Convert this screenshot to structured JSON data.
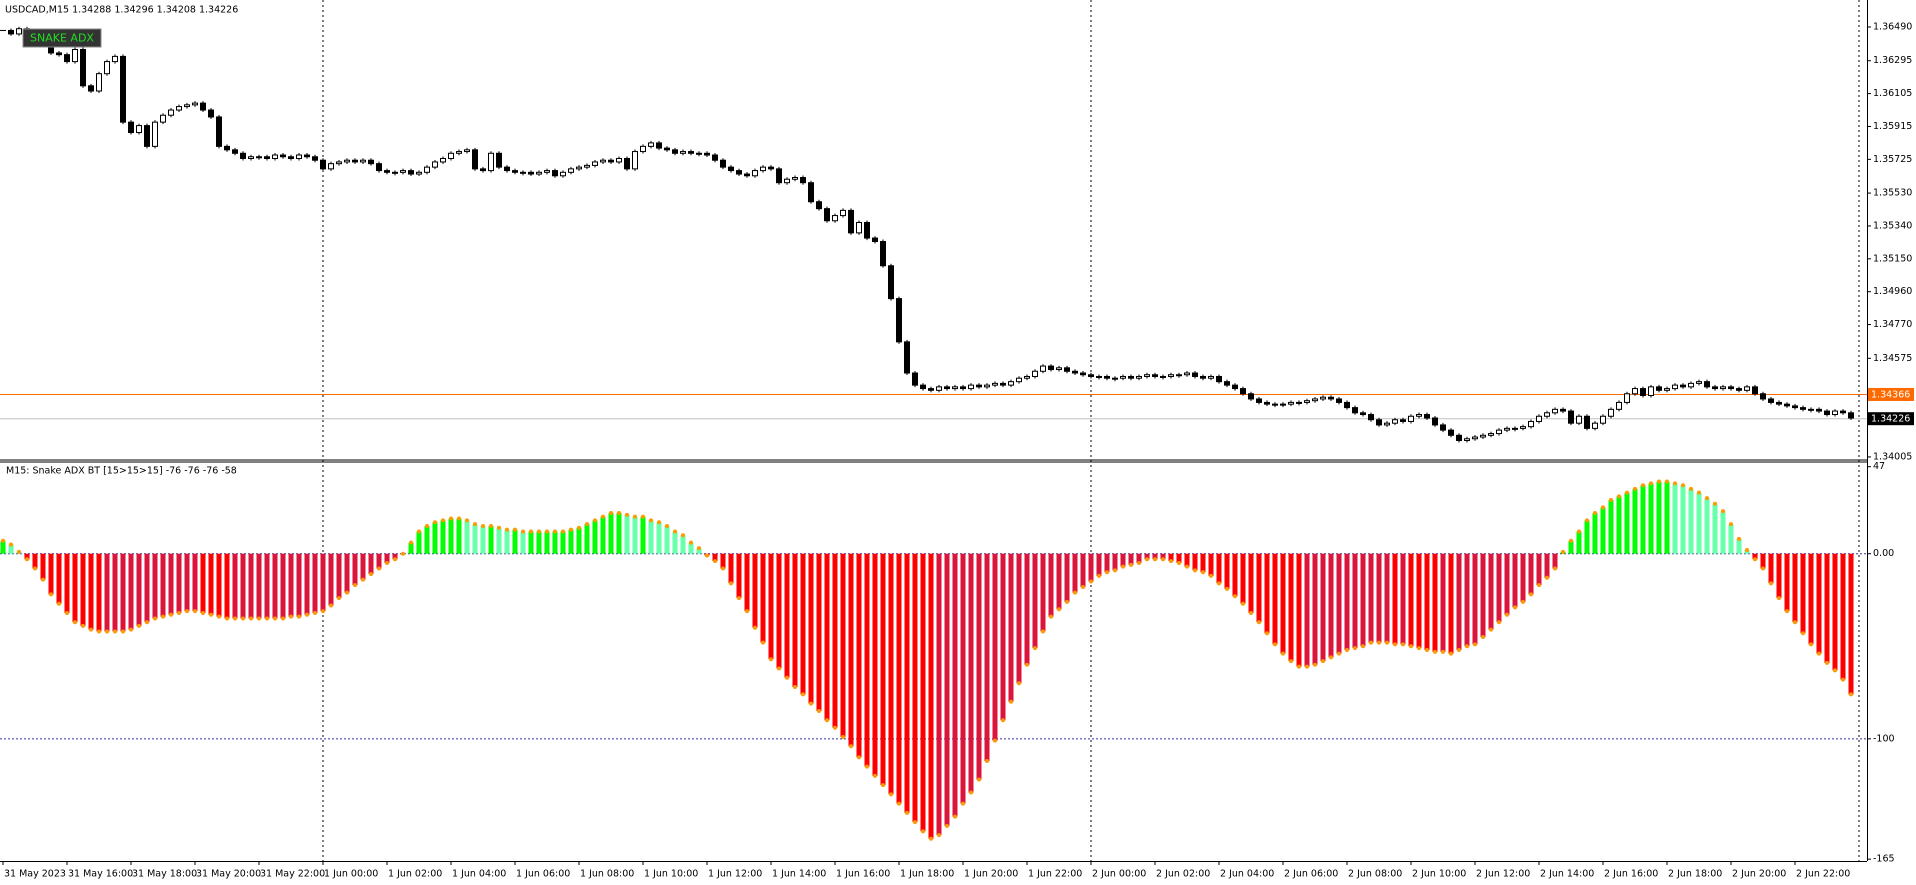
{
  "chart_data": [
    {
      "type": "candlestick",
      "title": "USDCAD,M15 1.34288 1.34296 1.34208 1.34226",
      "button_label": "SNAKE ADX",
      "up_color": "#ffffff",
      "down_color": "#000000",
      "outline_color": "#000000",
      "values": [
        1.3647,
        1.3645,
        1.3648,
        1.3646,
        1.3643,
        1.364,
        1.3634,
        1.3633,
        1.3629,
        1.3636,
        1.3615,
        1.3612,
        1.3622,
        1.3629,
        1.3632,
        1.3594,
        1.3588,
        1.3592,
        1.358,
        1.3594,
        1.3598,
        1.3601,
        1.3603,
        1.3604,
        1.3605,
        1.3601,
        1.3597,
        1.358,
        1.3578,
        1.3576,
        1.3573,
        1.3574,
        1.3574,
        1.3573,
        1.3575,
        1.3574,
        1.3573,
        1.3575,
        1.3574,
        1.3572,
        1.3567,
        1.357,
        1.3571,
        1.3572,
        1.3571,
        1.3572,
        1.357,
        1.3566,
        1.3565,
        1.3565,
        1.3566,
        1.3564,
        1.3565,
        1.3568,
        1.3571,
        1.3573,
        1.3576,
        1.3577,
        1.3578,
        1.3567,
        1.3566,
        1.3576,
        1.3568,
        1.3566,
        1.3565,
        1.3565,
        1.3564,
        1.3565,
        1.3566,
        1.3563,
        1.3565,
        1.3567,
        1.3568,
        1.3569,
        1.3571,
        1.3572,
        1.3571,
        1.3573,
        1.3567,
        1.3577,
        1.358,
        1.3582,
        1.3579,
        1.3578,
        1.3576,
        1.3577,
        1.3576,
        1.3576,
        1.3575,
        1.3572,
        1.3568,
        1.3566,
        1.3564,
        1.3563,
        1.3566,
        1.3568,
        1.3567,
        1.3559,
        1.3561,
        1.3562,
        1.3559,
        1.3548,
        1.3544,
        1.3537,
        1.354,
        1.3543,
        1.353,
        1.3536,
        1.3527,
        1.3525,
        1.3511,
        1.3492,
        1.3467,
        1.3449,
        1.3442,
        1.344,
        1.3439,
        1.3441,
        1.344,
        1.3441,
        1.344,
        1.3442,
        1.3441,
        1.3442,
        1.3443,
        1.3442,
        1.3444,
        1.3446,
        1.3447,
        1.345,
        1.3453,
        1.3451,
        1.3452,
        1.345,
        1.3449,
        1.3448,
        1.3447,
        1.3447,
        1.3446,
        1.3446,
        1.3447,
        1.3446,
        1.3447,
        1.3448,
        1.3447,
        1.3447,
        1.3448,
        1.3448,
        1.3449,
        1.3447,
        1.3446,
        1.3447,
        1.3444,
        1.3442,
        1.344,
        1.3437,
        1.3434,
        1.3432,
        1.3431,
        1.3431,
        1.3431,
        1.3432,
        1.3432,
        1.3433,
        1.3434,
        1.3435,
        1.3434,
        1.3432,
        1.3429,
        1.3426,
        1.3425,
        1.3422,
        1.3419,
        1.342,
        1.3422,
        1.3421,
        1.3424,
        1.3425,
        1.3423,
        1.3419,
        1.3416,
        1.3413,
        1.341,
        1.3411,
        1.3412,
        1.3413,
        1.3414,
        1.3416,
        1.3417,
        1.3417,
        1.3418,
        1.3421,
        1.3424,
        1.3426,
        1.3428,
        1.3427,
        1.342,
        1.3424,
        1.3417,
        1.342,
        1.3424,
        1.3428,
        1.3432,
        1.3437,
        1.344,
        1.3436,
        1.3441,
        1.3439,
        1.344,
        1.3442,
        1.3441,
        1.3443,
        1.3444,
        1.3441,
        1.344,
        1.3441,
        1.344,
        1.3439,
        1.3441,
        1.3437,
        1.3434,
        1.3432,
        1.3431,
        1.343,
        1.3429,
        1.3428,
        1.3428,
        1.3427,
        1.3425,
        1.3427,
        1.3426,
        1.3423
      ],
      "ylim": [
        1.33993,
        1.36646
      ],
      "yticks": [
        {
          "value": 1.3649,
          "label": "1.36490"
        },
        1.36295,
        1.36105,
        1.35915,
        1.35725,
        {
          "value": 1.3553,
          "label": "1.35530"
        },
        {
          "value": 1.3534,
          "label": "1.35340"
        },
        {
          "value": 1.3515,
          "label": "1.35150"
        },
        {
          "value": 1.3496,
          "label": "1.34960"
        },
        {
          "value": 1.3477,
          "label": "1.34770"
        },
        1.34575,
        1.34005
      ],
      "reference_lines": [
        {
          "value": 1.34366,
          "color": "#ff6a00"
        },
        {
          "value": 1.34226,
          "color": "#c0c0c0",
          "label_color": "#000000"
        }
      ]
    },
    {
      "type": "histogram",
      "title": "M15: Snake ADX BT [15>15>15] -76 -76 -76 -58",
      "categories": [
        "31 May 2023",
        null,
        null,
        null,
        null,
        null,
        null,
        null,
        "31 May 16:00",
        null,
        null,
        null,
        null,
        null,
        null,
        null,
        "31 May 18:00",
        null,
        null,
        null,
        null,
        null,
        null,
        null,
        "31 May 20:00",
        null,
        null,
        null,
        null,
        null,
        null,
        null,
        "31 May 22:00",
        null,
        null,
        null,
        null,
        null,
        null,
        null,
        "1 Jun 00:00",
        null,
        null,
        null,
        null,
        null,
        null,
        null,
        "1 Jun 02:00",
        null,
        null,
        null,
        null,
        null,
        null,
        null,
        "1 Jun 04:00",
        null,
        null,
        null,
        null,
        null,
        null,
        null,
        "1 Jun 06:00",
        null,
        null,
        null,
        null,
        null,
        null,
        null,
        "1 Jun 08:00",
        null,
        null,
        null,
        null,
        null,
        null,
        null,
        "1 Jun 10:00",
        null,
        null,
        null,
        null,
        null,
        null,
        null,
        "1 Jun 12:00",
        null,
        null,
        null,
        null,
        null,
        null,
        null,
        "1 Jun 14:00",
        null,
        null,
        null,
        null,
        null,
        null,
        null,
        "1 Jun 16:00",
        null,
        null,
        null,
        null,
        null,
        null,
        null,
        "1 Jun 18:00",
        null,
        null,
        null,
        null,
        null,
        null,
        null,
        "1 Jun 20:00",
        null,
        null,
        null,
        null,
        null,
        null,
        null,
        "1 Jun 22:00",
        null,
        null,
        null,
        null,
        null,
        null,
        null,
        "2 Jun 00:00",
        null,
        null,
        null,
        null,
        null,
        null,
        null,
        "2 Jun 02:00",
        null,
        null,
        null,
        null,
        null,
        null,
        null,
        "2 Jun 04:00",
        null,
        null,
        null,
        null,
        null,
        null,
        null,
        "2 Jun 06:00",
        null,
        null,
        null,
        null,
        null,
        null,
        null,
        "2 Jun 08:00",
        null,
        null,
        null,
        null,
        null,
        null,
        null,
        "2 Jun 10:00",
        null,
        null,
        null,
        null,
        null,
        null,
        null,
        "2 Jun 12:00",
        null,
        null,
        null,
        null,
        null,
        null,
        null,
        "2 Jun 14:00",
        null,
        null,
        null,
        null,
        null,
        null,
        null,
        "2 Jun 16:00",
        null,
        null,
        null,
        null,
        null,
        null,
        null,
        "2 Jun 18:00",
        null,
        null,
        null,
        null,
        null,
        null,
        null,
        "2 Jun 20:00",
        null,
        null,
        null,
        null,
        null,
        null,
        null,
        "2 Jun 22:00",
        null,
        null,
        null,
        null,
        null,
        null,
        null
      ],
      "values": [
        7,
        5,
        1,
        -3,
        -8,
        -14,
        -22,
        -27,
        -32,
        -37,
        -39,
        -41,
        -42,
        -42,
        -42,
        -42,
        -41,
        -39,
        -37,
        -35,
        -34,
        -33,
        -32,
        -31,
        -31,
        -32,
        -33,
        -34,
        -35,
        -35,
        -35,
        -35,
        -35,
        -35,
        -35,
        -35,
        -34,
        -34,
        -33,
        -32,
        -31,
        -28,
        -24,
        -21,
        -17,
        -14,
        -11,
        -8,
        -5,
        -3,
        0,
        6,
        12,
        15,
        17,
        18,
        19,
        19,
        18,
        16,
        15,
        15,
        14,
        13,
        13,
        12,
        12,
        12,
        12,
        12,
        12,
        13,
        14,
        16,
        18,
        20,
        22,
        22,
        21,
        20,
        20,
        18,
        17,
        15,
        12,
        10,
        6,
        3,
        -1,
        -4,
        -8,
        -16,
        -24,
        -31,
        -40,
        -48,
        -57,
        -62,
        -67,
        -72,
        -76,
        -81,
        -85,
        -90,
        -94,
        -99,
        -104,
        -110,
        -115,
        -120,
        -125,
        -130,
        -135,
        -140,
        -145,
        -150,
        -154,
        -152,
        -147,
        -142,
        -135,
        -129,
        -122,
        -112,
        -101,
        -90,
        -80,
        -70,
        -60,
        -51,
        -42,
        -34,
        -30,
        -26,
        -21,
        -18,
        -15,
        -12,
        -10,
        -9,
        -7,
        -6,
        -5,
        -3,
        -3,
        -3,
        -4,
        -5,
        -7,
        -9,
        -10,
        -12,
        -16,
        -19,
        -23,
        -27,
        -32,
        -37,
        -43,
        -49,
        -54,
        -58,
        -61,
        -61,
        -60,
        -58,
        -56,
        -54,
        -52,
        -51,
        -50,
        -48,
        -48,
        -48,
        -49,
        -49,
        -50,
        -51,
        -52,
        -53,
        -53,
        -54,
        -52,
        -50,
        -49,
        -45,
        -41,
        -37,
        -33,
        -29,
        -26,
        -22,
        -17,
        -13,
        -8,
        1,
        7,
        12,
        18,
        22,
        25,
        29,
        31,
        33,
        35,
        37,
        38,
        39,
        39,
        38,
        37,
        35,
        33,
        30,
        27,
        23,
        16,
        8,
        2,
        -3,
        -8,
        -16,
        -24,
        -31,
        -37,
        -43,
        -49,
        -54,
        -59,
        -63,
        -68,
        -76
      ],
      "positive_rising_color": "#00ff00",
      "positive_falling_color": "#66ffaa",
      "negative_falling_color": "#ff0000",
      "negative_rising_color": "#dc143c",
      "line_color": "#ff9900",
      "ylim": [
        -166,
        49
      ],
      "yticks": [
        47,
        {
          "value": 0,
          "label": "0.00"
        },
        -100,
        -165
      ],
      "level_lines": [
        0,
        -100
      ],
      "level_color": "#3030a0",
      "period_separators": true
    }
  ]
}
